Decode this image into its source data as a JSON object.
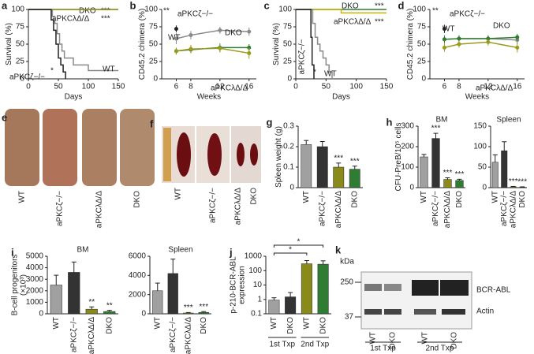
{
  "chart_data": [
    {
      "type": "line",
      "panel": "a",
      "step": true,
      "xlabel": "Days",
      "ylabel": "Survival (%)",
      "xlim": [
        0,
        150
      ],
      "xticks": [
        0,
        50,
        100,
        150
      ],
      "ylim": [
        0,
        100
      ],
      "yticks": [
        0,
        25,
        50,
        75,
        100
      ],
      "annotation": "*",
      "series": [
        {
          "name": "DKO",
          "color": "#2e7d32",
          "significance": "***",
          "x": [
            0,
            150
          ],
          "values": [
            100,
            100
          ]
        },
        {
          "name": "aPKCλΔ/Δ",
          "color": "#9a9a1e",
          "significance": "***",
          "x": [
            0,
            150
          ],
          "values": [
            100,
            100
          ]
        },
        {
          "name": "WT",
          "color": "#8a8a8a",
          "significance": null,
          "x": [
            0,
            40,
            44,
            48,
            52,
            56,
            60,
            75,
            100,
            150
          ],
          "values": [
            100,
            90,
            80,
            65,
            50,
            40,
            30,
            20,
            12,
            12
          ]
        },
        {
          "name": "aPKCζ−/−",
          "color": "#222222",
          "significance": null,
          "x": [
            0,
            38,
            42,
            46,
            50,
            54,
            58,
            62
          ],
          "values": [
            100,
            85,
            70,
            50,
            30,
            20,
            10,
            0
          ]
        }
      ]
    },
    {
      "type": "line",
      "panel": "b",
      "xlabel": "Weeks",
      "ylabel": "CD45.2 chimera (%)",
      "x": [
        6,
        8,
        12,
        16
      ],
      "xlim": [
        4,
        17
      ],
      "xticks": [
        6,
        8,
        12,
        16
      ],
      "ylim": [
        0,
        100
      ],
      "yticks": [
        0,
        25,
        50,
        75,
        100
      ],
      "annotation": "**",
      "series": [
        {
          "name": "aPKCζ−/−",
          "color": "#222222",
          "values": [
            72,
            null,
            null,
            null
          ],
          "errors": [
            5,
            null,
            null,
            null
          ]
        },
        {
          "name": "WT",
          "color": "#8a8a8a",
          "values": [
            58,
            63,
            70,
            68
          ],
          "errors": [
            8,
            6,
            5,
            6
          ]
        },
        {
          "name": "DKO",
          "color": "#2e7d32",
          "values": [
            40,
            42,
            45,
            45
          ],
          "errors": [
            5,
            5,
            6,
            5
          ]
        },
        {
          "name": "aPKCλΔ/Δ",
          "color": "#9a9a1e",
          "values": [
            40,
            43,
            44,
            37
          ],
          "errors": [
            5,
            6,
            6,
            8
          ]
        }
      ]
    },
    {
      "type": "line",
      "panel": "c",
      "step": true,
      "xlabel": "Days",
      "ylabel": "Survival (%)",
      "xlim": [
        0,
        150
      ],
      "xticks": [
        0,
        50,
        100,
        150
      ],
      "ylim": [
        0,
        100
      ],
      "yticks": [
        0,
        25,
        50,
        75,
        100
      ],
      "annotation": "*",
      "series": [
        {
          "name": "DKO",
          "color": "#2e7d32",
          "significance": "***",
          "x": [
            0,
            150
          ],
          "values": [
            100,
            100
          ]
        },
        {
          "name": "aPKCλΔ/Δ",
          "color": "#c8b400",
          "significance": "***",
          "x": [
            0,
            75,
            150
          ],
          "values": [
            100,
            95,
            95
          ]
        },
        {
          "name": "WT",
          "color": "#8a8a8a",
          "significance": null,
          "x": [
            0,
            28,
            32,
            36,
            40,
            45,
            50,
            55,
            60
          ],
          "values": [
            100,
            80,
            60,
            50,
            40,
            30,
            20,
            10,
            0
          ]
        },
        {
          "name": "aPKCζ−/−",
          "color": "#222222",
          "significance": null,
          "x": [
            0,
            25,
            27,
            30
          ],
          "values": [
            100,
            60,
            20,
            0
          ]
        }
      ]
    },
    {
      "type": "line",
      "panel": "d",
      "xlabel": "Weeks",
      "ylabel": "CD45.2 chimera (%)",
      "x": [
        6,
        8,
        12,
        16
      ],
      "xlim": [
        4,
        17
      ],
      "xticks": [
        6,
        8,
        12,
        16
      ],
      "ylim": [
        0,
        100
      ],
      "yticks": [
        0,
        25,
        50,
        75,
        100
      ],
      "annotation": "**",
      "series": [
        {
          "name": "aPKCζ−/−",
          "color": "#222222",
          "values": [
            72,
            null,
            null,
            null
          ],
          "errors": [
            6,
            null,
            null,
            null
          ]
        },
        {
          "name": "WT",
          "color": "#8a8a8a",
          "values": [
            57,
            58,
            58,
            56
          ],
          "errors": [
            6,
            5,
            5,
            6
          ]
        },
        {
          "name": "DKO",
          "color": "#2e7d32",
          "values": [
            57,
            58,
            58,
            60
          ],
          "errors": [
            5,
            4,
            4,
            5
          ]
        },
        {
          "name": "aPKCλΔ/Δ",
          "color": "#9a9a1e",
          "values": [
            45,
            50,
            53,
            45
          ],
          "errors": [
            6,
            5,
            5,
            7
          ]
        }
      ]
    },
    {
      "type": "bar",
      "panel": "g",
      "ylabel": "Spleen weight (g)",
      "categories": [
        "WT",
        "aPKCζ−/−",
        "aPKCλΔ/Δ",
        "DKO"
      ],
      "values": [
        0.21,
        0.2,
        0.1,
        0.09
      ],
      "errors": [
        0.02,
        0.025,
        0.02,
        0.015
      ],
      "colors": [
        "#a0a0a0",
        "#333333",
        "#8a8a1a",
        "#2e7d32"
      ],
      "significance": [
        null,
        null,
        "***",
        "***"
      ],
      "ylim": [
        0,
        0.3
      ],
      "yticks": [
        0,
        0.1,
        0.2,
        0.3
      ]
    },
    {
      "type": "bar",
      "panel": "h",
      "title": "BM",
      "ylabel": "CFU-PreB/10⁵ cells",
      "categories": [
        "WT",
        "aPKCζ−/−",
        "aPKCλΔ/Δ",
        "DKO"
      ],
      "values": [
        150,
        240,
        40,
        35
      ],
      "errors": [
        12,
        25,
        8,
        6
      ],
      "colors": [
        "#a0a0a0",
        "#333333",
        "#8a8a1a",
        "#2e7d32"
      ],
      "significance": [
        null,
        "***",
        "***",
        "***"
      ],
      "ylim": [
        0,
        300
      ],
      "yticks": [
        0,
        100,
        200,
        300
      ]
    },
    {
      "type": "bar",
      "title": "Spleen",
      "categories": [
        "WT",
        "aPKCζ−/−",
        "aPKCλΔ/Δ",
        "DKO"
      ],
      "values": [
        62,
        90,
        2,
        1
      ],
      "errors": [
        18,
        22,
        1,
        1
      ],
      "colors": [
        "#a0a0a0",
        "#333333",
        "#8a8a1a",
        "#2e7d32"
      ],
      "significance": [
        null,
        null,
        "***",
        "***"
      ],
      "ylim": [
        0,
        150
      ],
      "yticks": [
        0,
        50,
        100,
        150
      ]
    },
    {
      "type": "bar",
      "panel": "i",
      "title": "BM",
      "ylabel": [
        "B-cell progenitors",
        "(×10³)"
      ],
      "categories": [
        "WT",
        "aPKCζ−/−",
        "aPKCλΔ/Δ",
        "DKO"
      ],
      "values": [
        2500,
        3600,
        400,
        200
      ],
      "errors": [
        850,
        900,
        200,
        100
      ],
      "colors": [
        "#a0a0a0",
        "#333333",
        "#8a8a1a",
        "#2e7d32"
      ],
      "significance": [
        null,
        null,
        "**",
        "**"
      ],
      "ylim": [
        0,
        5000
      ],
      "yticks": [
        0,
        1000,
        2000,
        3000,
        4000,
        5000
      ]
    },
    {
      "type": "bar",
      "title": "Spleen",
      "categories": [
        "WT",
        "aPKCζ−/−",
        "aPKCλΔ/Δ",
        "DKO"
      ],
      "values": [
        2400,
        4200,
        80,
        150
      ],
      "errors": [
        800,
        1500,
        50,
        80
      ],
      "colors": [
        "#a0a0a0",
        "#333333",
        "#8a8a1a",
        "#2e7d32"
      ],
      "significance": [
        null,
        null,
        "***",
        "***"
      ],
      "ylim": [
        0,
        6000
      ],
      "yticks": [
        0,
        2000,
        4000,
        6000
      ]
    },
    {
      "type": "bar",
      "panel": "j",
      "log": true,
      "ylabel": [
        "p-210-BCR-ABL",
        "expression"
      ],
      "categories": [
        "WT",
        "DKO",
        "WT",
        "DKO"
      ],
      "values": [
        0.9,
        1.5,
        300,
        280
      ],
      "errors": [
        0.4,
        1.5,
        200,
        200
      ],
      "colors": [
        "#a0a0a0",
        "#333333",
        "#8a8a1a",
        "#2e7d32"
      ],
      "groups": [
        "1st Txp",
        "2nd Txp"
      ],
      "comparisons": [
        "*",
        "*"
      ],
      "ylim": [
        0.1,
        1000
      ],
      "yticks": [
        0.1,
        1,
        10,
        100,
        1000
      ]
    }
  ],
  "photos": [
    {
      "panel": "e",
      "labels": [
        "WT",
        "aPKCζ−/−",
        "aPKCλΔ/Δ",
        "DKO"
      ]
    },
    {
      "panel": "f",
      "labels": [
        "WT",
        "aPKCζ−/−",
        "aPKCλΔ/Δ",
        "DKO"
      ]
    }
  ],
  "blot": {
    "panel": "k",
    "unit": "kDa",
    "markers": [
      "250",
      "37"
    ],
    "bands": [
      "BCR-ABL",
      "Actin"
    ],
    "lanes": [
      "WT",
      "DKO",
      "WT",
      "DKO"
    ],
    "groups": [
      "1st Txp",
      "2nd Txp"
    ]
  }
}
